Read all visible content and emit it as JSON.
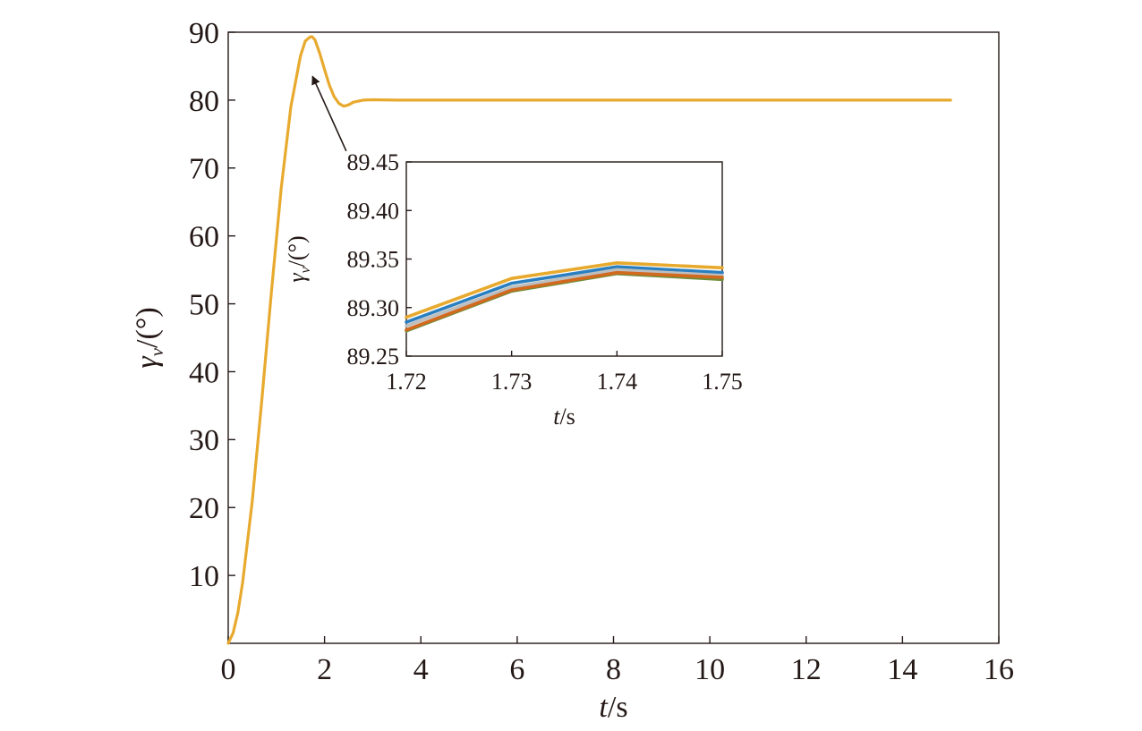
{
  "chart_data": [
    {
      "type": "line",
      "role": "main",
      "xlabel": "t/s",
      "ylabel": "γv/(°)",
      "xlim": [
        0,
        16
      ],
      "ylim": [
        0,
        90
      ],
      "xticks": [
        0,
        2,
        4,
        6,
        8,
        10,
        12,
        14,
        16
      ],
      "yticks": [
        10,
        20,
        30,
        40,
        50,
        60,
        70,
        80,
        90
      ],
      "grid": false,
      "legend": "none",
      "series": [
        {
          "color": "#E8AA2E",
          "x": [
            0,
            0.1,
            0.2,
            0.3,
            0.5,
            0.7,
            0.9,
            1.1,
            1.3,
            1.5,
            1.6,
            1.7,
            1.74,
            1.8,
            1.9,
            2.0,
            2.1,
            2.2,
            2.3,
            2.4,
            2.5,
            2.6,
            2.8,
            3.0,
            3.5,
            4.0,
            6.0,
            8.0,
            10.0,
            12.0,
            14.0,
            15.0
          ],
          "y": [
            0,
            1.5,
            4.5,
            9,
            21,
            36,
            52,
            67,
            79,
            86.5,
            88.7,
            89.3,
            89.34,
            88.9,
            86.9,
            84.5,
            82.2,
            80.5,
            79.5,
            79.1,
            79.3,
            79.7,
            80.0,
            80.05,
            80.0,
            80.0,
            80.0,
            80.0,
            80.0,
            80.0,
            80.0,
            80.0
          ]
        }
      ],
      "annotation": {
        "type": "arrow",
        "from": [
          2.45,
          72.5
        ],
        "to": [
          1.75,
          83.5
        ]
      }
    },
    {
      "type": "line",
      "role": "inset",
      "xlabel": "t/s",
      "ylabel": "γv/(°)",
      "xlim": [
        1.72,
        1.75
      ],
      "ylim": [
        89.25,
        89.45
      ],
      "xticks": [
        "1.72",
        "1.73",
        "1.74",
        "1.75"
      ],
      "yticks": [
        "89.25",
        "89.30",
        "89.35",
        "89.40",
        "89.45"
      ],
      "grid": false,
      "legend": "none",
      "series": [
        {
          "color": "#E8AA2E",
          "x": [
            1.72,
            1.73,
            1.74,
            1.75
          ],
          "y": [
            89.29,
            89.33,
            89.346,
            89.341
          ]
        },
        {
          "color": "#2A7FC1",
          "x": [
            1.72,
            1.73,
            1.74,
            1.75
          ],
          "y": [
            89.285,
            89.325,
            89.342,
            89.336
          ]
        },
        {
          "color": "#BCBEC0",
          "x": [
            1.72,
            1.73,
            1.74,
            1.75
          ],
          "y": [
            89.281,
            89.321,
            89.339,
            89.333
          ]
        },
        {
          "color": "#6E8E3A",
          "x": [
            1.72,
            1.73,
            1.74,
            1.75
          ],
          "y": [
            89.276,
            89.317,
            89.335,
            89.329
          ]
        },
        {
          "color": "#D2691E",
          "x": [
            1.72,
            1.73,
            1.74,
            1.75
          ],
          "y": [
            89.277,
            89.318,
            89.336,
            89.331
          ]
        }
      ]
    }
  ]
}
